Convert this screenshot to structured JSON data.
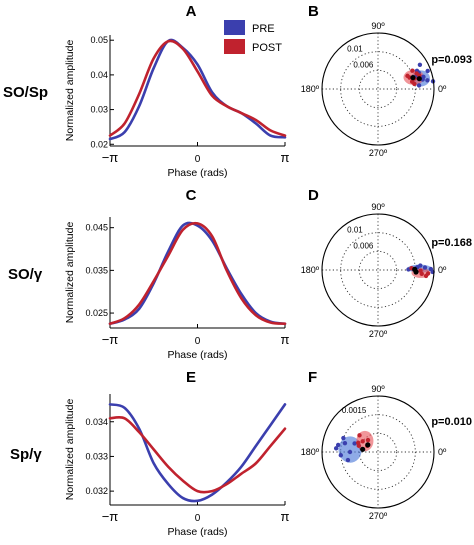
{
  "colors": {
    "pre": "#3b3fae",
    "post": "#c0222e",
    "pre_fill": "#4a78d8",
    "post_fill": "#e8555c"
  },
  "legend": {
    "pre": "PRE",
    "post": "POST"
  },
  "rows": [
    {
      "label": "SO/Sp",
      "letter_left": "A",
      "letter_right": "B",
      "p_value": "p=0.093"
    },
    {
      "label": "SO/γ",
      "letter_left": "C",
      "letter_right": "D",
      "p_value": "p=0.168"
    },
    {
      "label": "Sp/γ",
      "letter_left": "E",
      "letter_right": "F",
      "p_value": "p=0.010"
    }
  ],
  "axis_text": {
    "ylabel": "Normalized amplitude",
    "xlabel": "Phase (rads)",
    "xticks": [
      "−π",
      "0",
      "π"
    ],
    "angles": [
      "90º",
      "180º",
      "0º",
      "270º"
    ]
  },
  "chart_data": [
    {
      "panel": "A",
      "type": "line",
      "xlabel": "Phase (rads)",
      "ylabel": "Normalized amplitude",
      "xlim": [
        -3.1416,
        3.1416
      ],
      "ylim": [
        0.0195,
        0.0515
      ],
      "yticks": [
        0.02,
        0.03,
        0.04,
        0.05
      ],
      "yticklabels": [
        "0.02",
        "0.03",
        "0.04",
        "0.05"
      ],
      "x": [
        -3.1416,
        -2.618,
        -2.0944,
        -1.5708,
        -1.0472,
        -0.5236,
        0.0,
        0.5236,
        1.0472,
        1.5708,
        2.0944,
        2.618,
        3.1416
      ],
      "series": [
        {
          "name": "PRE",
          "values": [
            0.0215,
            0.0235,
            0.031,
            0.042,
            0.0498,
            0.0478,
            0.043,
            0.035,
            0.031,
            0.029,
            0.026,
            0.0225,
            0.022
          ]
        },
        {
          "name": "POST",
          "values": [
            0.0225,
            0.026,
            0.0345,
            0.0448,
            0.0497,
            0.0475,
            0.041,
            0.034,
            0.031,
            0.029,
            0.027,
            0.024,
            0.0225
          ]
        }
      ]
    },
    {
      "panel": "C",
      "type": "line",
      "xlabel": "Phase (rads)",
      "ylabel": "Normalized amplitude",
      "xlim": [
        -3.1416,
        3.1416
      ],
      "ylim": [
        0.0215,
        0.0475
      ],
      "yticks": [
        0.025,
        0.035,
        0.045
      ],
      "yticklabels": [
        "0.025",
        "0.035",
        "0.045"
      ],
      "x": [
        -3.1416,
        -2.618,
        -2.0944,
        -1.5708,
        -1.0472,
        -0.5236,
        0.0,
        0.5236,
        1.0472,
        1.5708,
        2.0944,
        2.618,
        3.1416
      ],
      "series": [
        {
          "name": "PRE",
          "values": [
            0.0225,
            0.0235,
            0.026,
            0.032,
            0.0395,
            0.0455,
            0.0455,
            0.042,
            0.0355,
            0.0295,
            0.025,
            0.023,
            0.0225
          ]
        },
        {
          "name": "POST",
          "values": [
            0.0225,
            0.0238,
            0.027,
            0.0325,
            0.0385,
            0.0445,
            0.046,
            0.043,
            0.035,
            0.0285,
            0.0245,
            0.0228,
            0.0225
          ]
        }
      ]
    },
    {
      "panel": "E",
      "type": "line",
      "xlabel": "Phase (rads)",
      "ylabel": "Normalized amplitude",
      "xlim": [
        -3.1416,
        3.1416
      ],
      "ylim": [
        0.0316,
        0.0348
      ],
      "yticks": [
        0.032,
        0.033,
        0.034
      ],
      "yticklabels": [
        "0.032",
        "0.033",
        "0.034"
      ],
      "x": [
        -3.1416,
        -2.618,
        -2.0944,
        -1.5708,
        -1.0472,
        -0.5236,
        0.0,
        0.5236,
        1.0472,
        1.5708,
        2.0944,
        2.618,
        3.1416
      ],
      "series": [
        {
          "name": "PRE",
          "values": [
            0.0345,
            0.0344,
            0.0338,
            0.0328,
            0.0322,
            0.0318,
            0.03172,
            0.0319,
            0.03225,
            0.0327,
            0.0333,
            0.0339,
            0.0345
          ]
        },
        {
          "name": "POST",
          "values": [
            0.0341,
            0.0341,
            0.0337,
            0.0332,
            0.0327,
            0.0323,
            0.032,
            0.032,
            0.0322,
            0.0325,
            0.0328,
            0.0333,
            0.0338
          ]
        }
      ]
    },
    {
      "panel": "B",
      "type": "scatter",
      "polar": true,
      "rmax": 0.0125,
      "rticks": [
        0.006,
        0.01
      ],
      "rticklabels": [
        "0.006",
        "0.01"
      ],
      "angle_labels": [
        "90º",
        "180º",
        "0º",
        "270º"
      ],
      "series": [
        {
          "name": "PRE",
          "points": [
            [
              0.0105,
              15
            ],
            [
              0.0118,
              20
            ],
            [
              0.0092,
              5
            ],
            [
              0.0112,
              10
            ],
            [
              0.0096,
              25
            ],
            [
              0.0102,
              12
            ],
            [
              0.0089,
              18
            ],
            [
              0.0124,
              8
            ],
            [
              0.0098,
              22
            ],
            [
              0.0108,
              30
            ]
          ],
          "mean": [
            0.0095,
            14
          ],
          "ellipse": {
            "center": [
              0.0098,
              14
            ],
            "width": 0.0042,
            "height": 0.0036,
            "angle_deg": 0
          }
        },
        {
          "name": "POST",
          "points": [
            [
              0.0085,
              16
            ],
            [
              0.0093,
              22
            ],
            [
              0.0078,
              12
            ],
            [
              0.0087,
              28
            ],
            [
              0.0075,
              20
            ],
            [
              0.0082,
              8
            ],
            [
              0.0097,
              18
            ],
            [
              0.0072,
              24
            ]
          ],
          "mean": [
            0.0082,
            18
          ],
          "ellipse": {
            "center": [
              0.0084,
              18
            ],
            "width": 0.0046,
            "height": 0.0034,
            "angle_deg": 0
          }
        }
      ]
    },
    {
      "panel": "D",
      "type": "scatter",
      "polar": true,
      "rmax": 0.0125,
      "rticks": [
        0.006,
        0.01
      ],
      "rticklabels": [
        "0.006",
        "0.01"
      ],
      "angle_labels": [
        "90º",
        "180º",
        "0º",
        "270º"
      ],
      "series": [
        {
          "name": "PRE",
          "points": [
            [
              0.0078,
              2
            ],
            [
              0.0088,
              4
            ],
            [
              0.0105,
              3
            ],
            [
              0.0118,
              1
            ],
            [
              0.0122,
              -2
            ],
            [
              0.0095,
              6
            ],
            [
              0.0068,
              1
            ]
          ],
          "mean": [
            0.0082,
            1
          ],
          "ellipse": {
            "center": [
              0.0093,
              2
            ],
            "width": 0.0055,
            "height": 0.0018,
            "angle_deg": 0
          }
        },
        {
          "name": "POST",
          "points": [
            [
              0.0085,
              -3
            ],
            [
              0.0098,
              -5
            ],
            [
              0.0108,
              -7
            ],
            [
              0.0075,
              3
            ],
            [
              0.0112,
              -4
            ],
            [
              0.0095,
              -1
            ]
          ],
          "mean": [
            0.0085,
            -3
          ],
          "ellipse": {
            "center": [
              0.0096,
              -4
            ],
            "width": 0.0042,
            "height": 0.0022,
            "angle_deg": 0
          }
        }
      ]
    },
    {
      "panel": "F",
      "type": "scatter",
      "polar": true,
      "rmax": 0.0018,
      "rticks": [
        0.0015
      ],
      "rticklabels": [
        "0.0015"
      ],
      "angle_labels": [
        "90º",
        "180º",
        "0º",
        "270º"
      ],
      "series": [
        {
          "name": "PRE",
          "points": [
            [
              0.0011,
              165
            ],
            [
              0.0013,
              170
            ],
            [
              0.0012,
              185
            ],
            [
              0.0009,
              180
            ],
            [
              0.00135,
              175
            ],
            [
              0.0008,
              160
            ],
            [
              0.001,
              195
            ],
            [
              0.0012,
              158
            ]
          ],
          "mean": [
            0.0005,
            170
          ],
          "ellipse": {
            "center": [
              0.0009,
              175
            ],
            "width": 0.00075,
            "height": 0.00085,
            "angle_deg": 0
          }
        },
        {
          "name": "POST",
          "points": [
            [
              0.0006,
              145
            ],
            [
              0.0007,
              155
            ],
            [
              0.0004,
              150
            ],
            [
              0.0008,
              138
            ],
            [
              0.0005,
              130
            ],
            [
              0.00065,
              162
            ]
          ],
          "mean": [
            0.0004,
            145
          ],
          "ellipse": {
            "center": [
              0.00055,
              140
            ],
            "width": 0.00055,
            "height": 0.00065,
            "angle_deg": 0
          }
        }
      ]
    }
  ]
}
